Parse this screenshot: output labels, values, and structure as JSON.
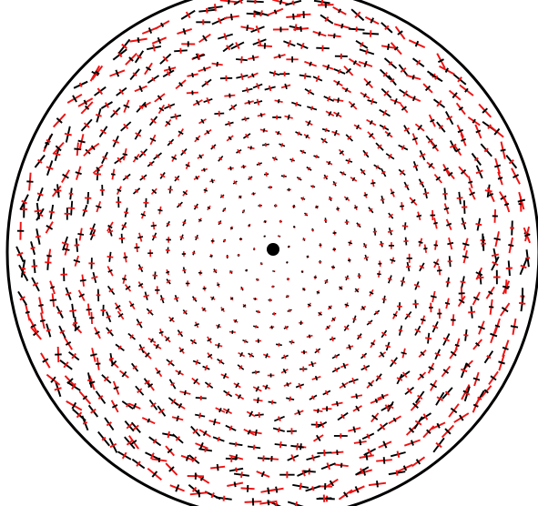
{
  "figure": {
    "type": "polar-strain-crosses-projection",
    "colors": {
      "background": "#ffffff",
      "outline": "#000000",
      "center_marker": "#000000",
      "axis_primary": "#000000",
      "axis_secondary": "#ee1111"
    },
    "pattern": {
      "ring_count": 18,
      "radial_spacing": 0.055,
      "angular_spacing": 0.062,
      "min_radius": 0.07,
      "max_radius": 0.985,
      "inner_cross_size": 0.006,
      "outer_cross_size": 0.045,
      "rotation_variation_deg": 25,
      "seed": 7
    }
  }
}
